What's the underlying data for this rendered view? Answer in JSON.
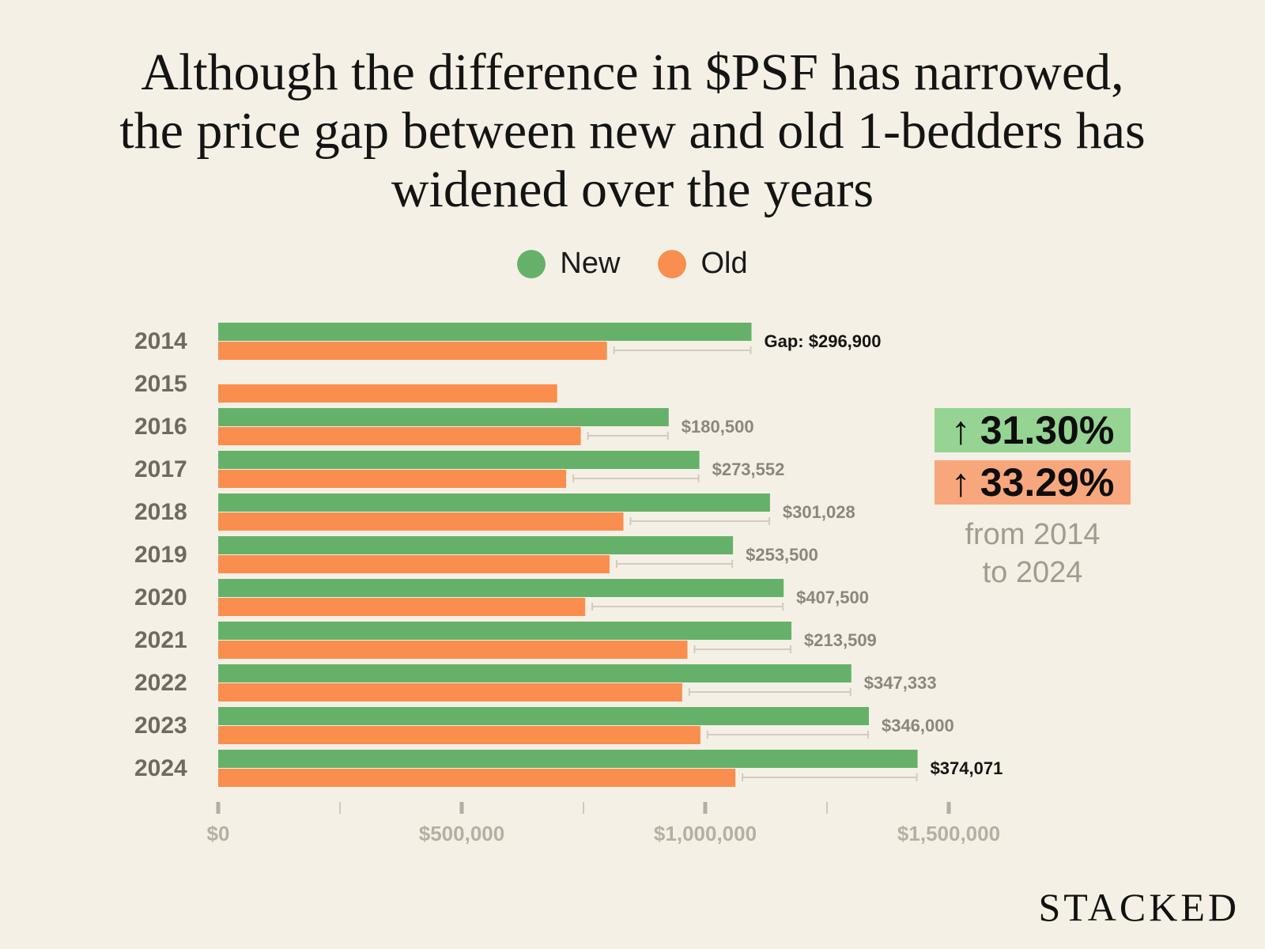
{
  "title_lines": [
    "Although the difference in $PSF has narrowed,",
    "the price gap between new and old 1-bedders has",
    "widened over the years"
  ],
  "colors": {
    "new": "#66b16a",
    "old": "#f98e4e",
    "gap_line": "#d2cbc0",
    "background": "#f5f0e5"
  },
  "callout": {
    "new_change": "31.30%",
    "old_change": "33.29%",
    "arrow": "↑",
    "caption_line1": "from 2014",
    "caption_line2": "to 2024",
    "new_bg": "#95d492",
    "old_bg": "#f8a77d"
  },
  "brand": "STACKED",
  "chart_data": {
    "type": "bar",
    "orientation": "horizontal",
    "categories": [
      "2014",
      "2015",
      "2016",
      "2017",
      "2018",
      "2019",
      "2020",
      "2021",
      "2022",
      "2023",
      "2024"
    ],
    "series": [
      {
        "name": "New",
        "values": [
          1095000,
          null,
          925000,
          988000,
          1133000,
          1057000,
          1161000,
          1177000,
          1300000,
          1336000,
          1436000
        ]
      },
      {
        "name": "Old",
        "values": [
          798100,
          696000,
          744500,
          714448,
          831972,
          803500,
          753500,
          963491,
          952667,
          990000,
          1061929
        ]
      }
    ],
    "annotations": [
      "Gap: $296,900",
      null,
      "$180,500",
      "$273,552",
      "$301,028",
      "$253,500",
      "$407,500",
      "$213,509",
      "$347,333",
      "$346,000",
      "$374,071"
    ],
    "xlim": [
      0,
      1500000
    ],
    "xticks": [
      0,
      500000,
      1000000,
      1500000
    ],
    "xtick_labels": [
      "$0",
      "$500,000",
      "$1,000,000",
      "$1,500,000"
    ],
    "minor_xticks": [
      250000,
      750000,
      1250000
    ],
    "legend": [
      "New",
      "Old"
    ],
    "legend_placement": "top-center",
    "grid": false
  }
}
